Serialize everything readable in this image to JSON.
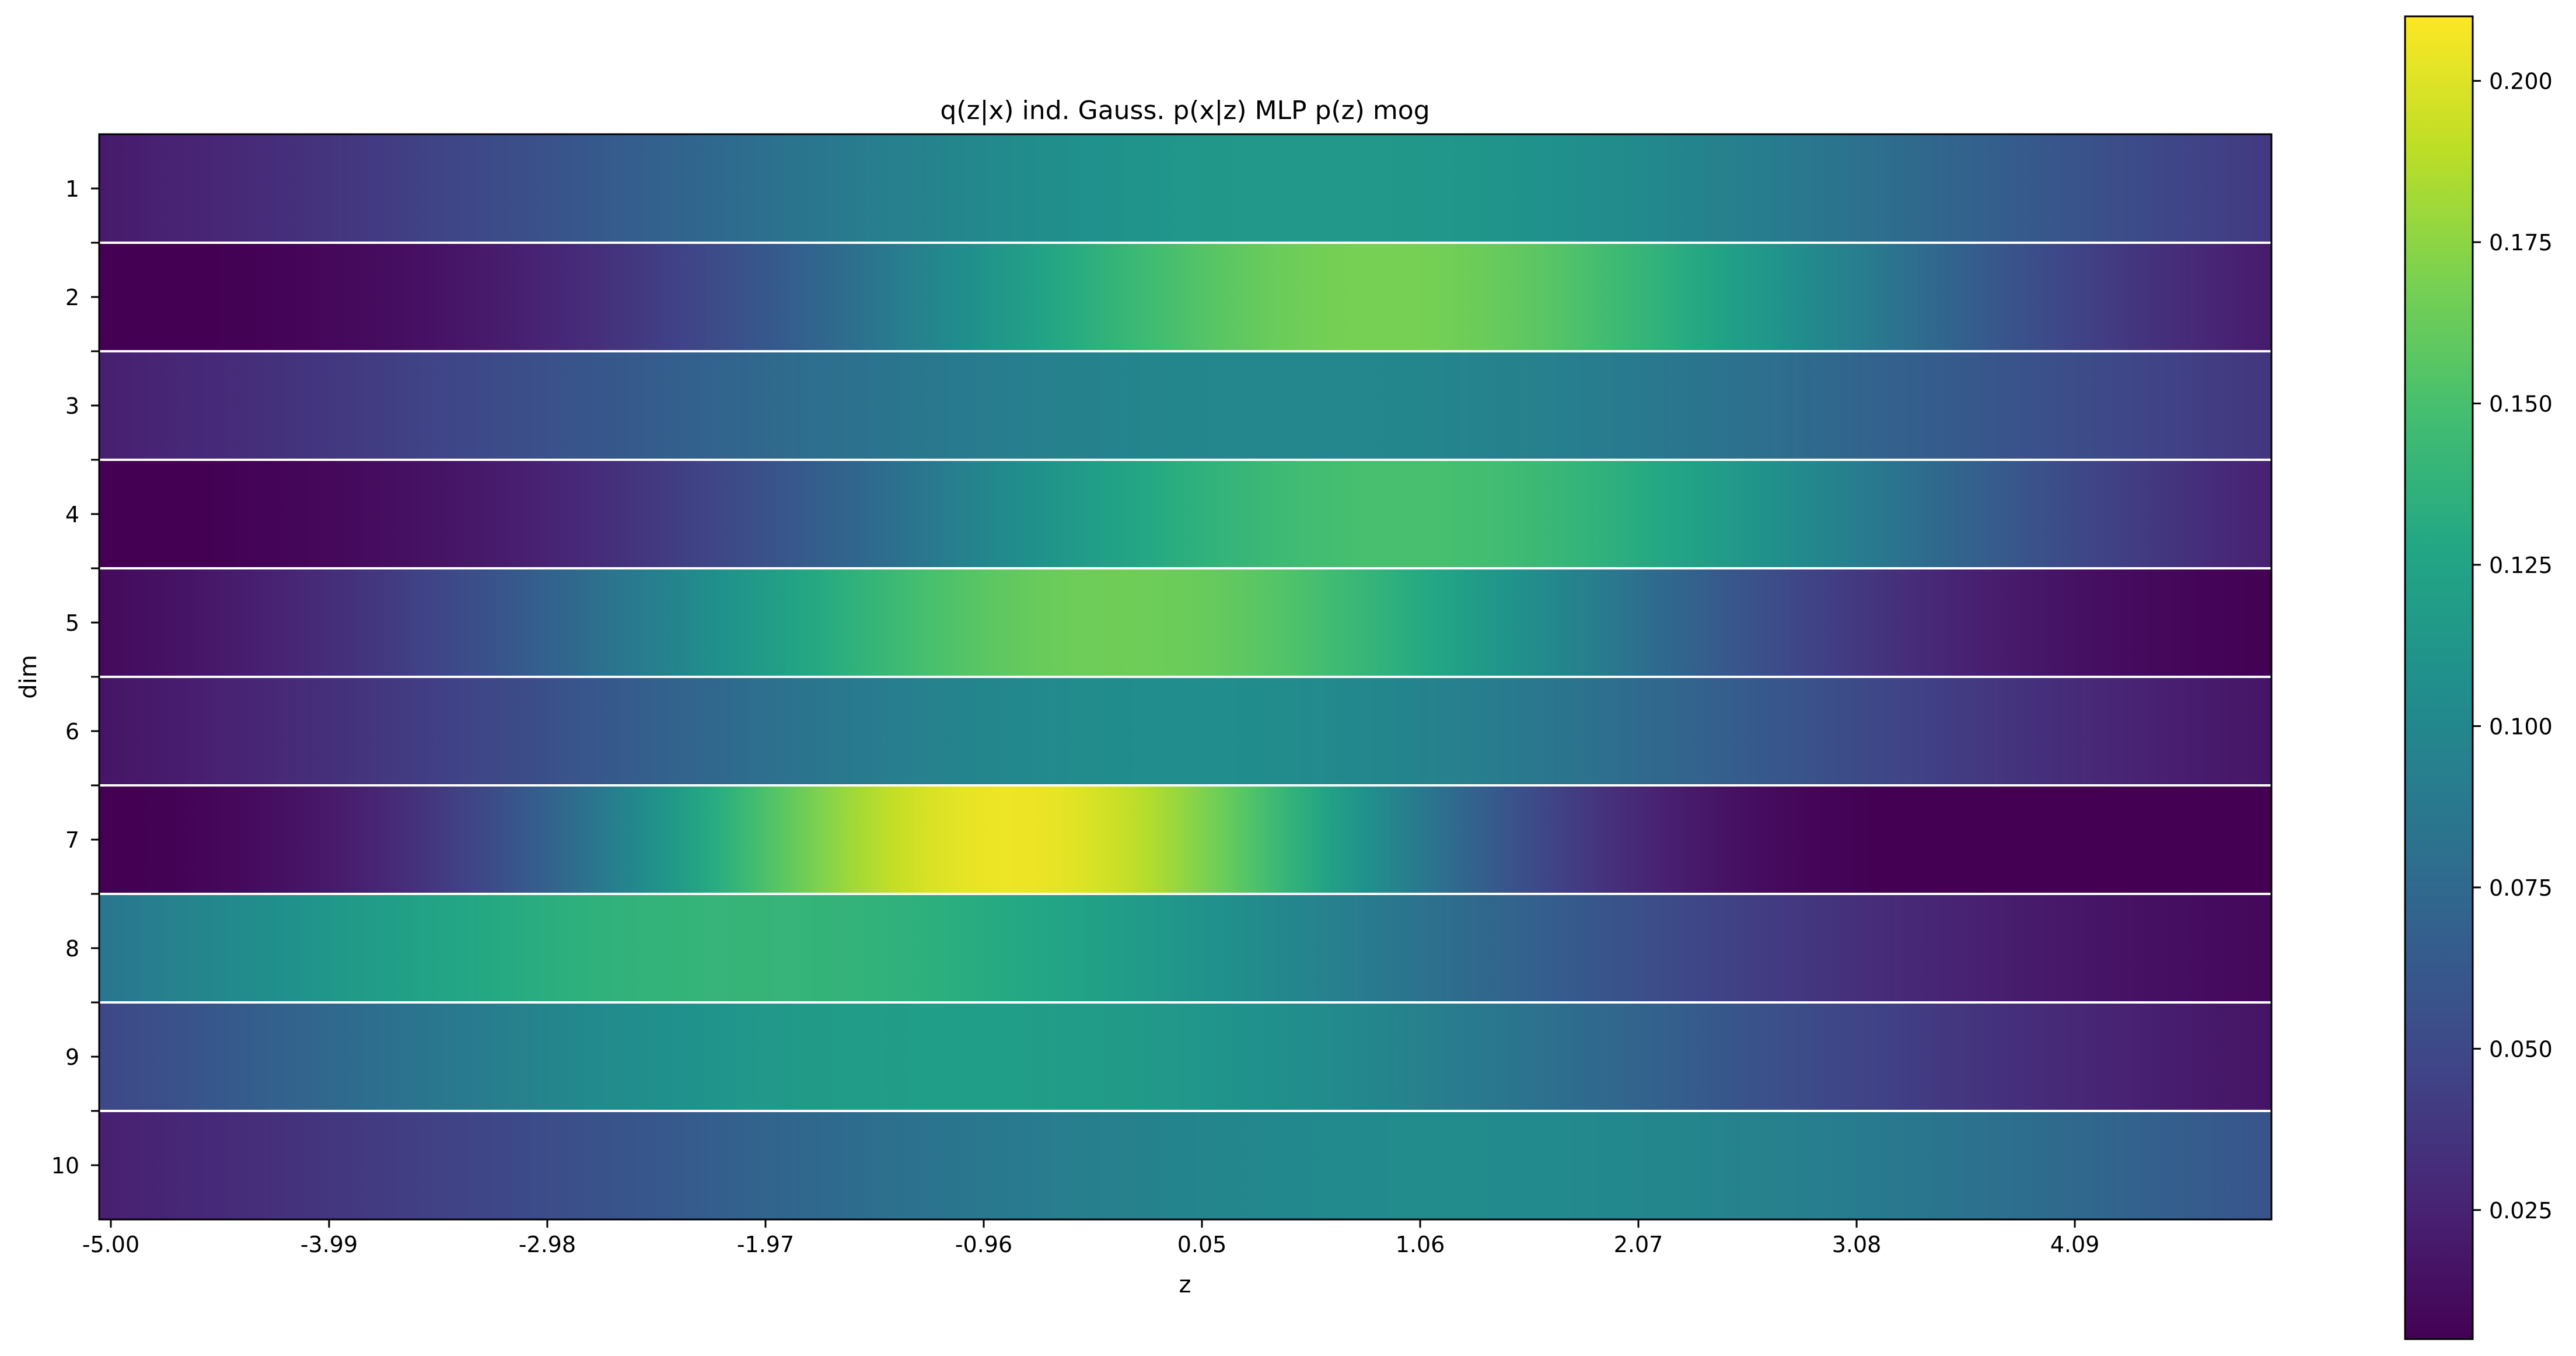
{
  "chart_data": {
    "type": "heatmap",
    "title": "q(z|x) ind. Gauss. p(x|z) MLP p(z) mog",
    "xlabel": "z",
    "ylabel": "dim",
    "x_tick_labels": [
      "-5.00",
      "-3.99",
      "-2.98",
      "-1.97",
      "-0.96",
      "0.05",
      "1.06",
      "2.07",
      "3.08",
      "4.09"
    ],
    "x_range": [
      -5.0,
      5.0
    ],
    "rows": [
      "1",
      "2",
      "3",
      "4",
      "5",
      "6",
      "7",
      "8",
      "9",
      "10"
    ],
    "row_separators": true,
    "colormap": "viridis",
    "colorbar": {
      "range": [
        0.005,
        0.21
      ],
      "tick_labels": [
        "0.025",
        "0.050",
        "0.075",
        "0.100",
        "0.125",
        "0.150",
        "0.175",
        "0.200"
      ],
      "ticks": [
        0.025,
        0.05,
        0.075,
        0.1,
        0.125,
        0.15,
        0.175,
        0.2
      ]
    },
    "series": [
      {
        "name": "1",
        "mean": 0.6,
        "std": 3.0,
        "scale": 0.115,
        "offset": 0.0
      },
      {
        "name": "2",
        "mean": 0.9,
        "std": 2.0,
        "scale": 0.168,
        "offset": 0.0
      },
      {
        "name": "3",
        "mean": 0.5,
        "std": 3.2,
        "scale": 0.1,
        "offset": 0.0
      },
      {
        "name": "4",
        "mean": 1.0,
        "std": 2.1,
        "scale": 0.15,
        "offset": 0.0
      },
      {
        "name": "5",
        "mean": -0.3,
        "std": 2.0,
        "scale": 0.165,
        "offset": 0.0
      },
      {
        "name": "6",
        "mean": 0.0,
        "std": 2.6,
        "scale": 0.105,
        "offset": 0.0
      },
      {
        "name": "7",
        "mean": -0.8,
        "std": 1.45,
        "scale": 0.205,
        "offset": 0.0
      },
      {
        "name": "8",
        "mean": -2.0,
        "std": 3.0,
        "scale": 0.14,
        "offset": 0.0
      },
      {
        "name": "9",
        "mean": -1.0,
        "std": 3.0,
        "scale": 0.12,
        "offset": 0.0
      },
      {
        "name": "10",
        "mean": 1.2,
        "std": 3.6,
        "scale": 0.103,
        "offset": 0.0
      }
    ]
  }
}
